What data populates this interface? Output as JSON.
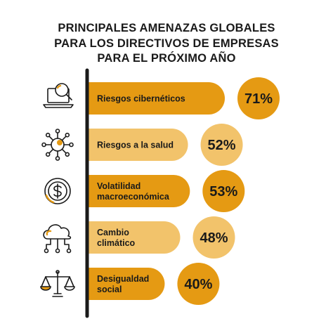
{
  "chart_data": {
    "type": "bar",
    "title_lines": [
      "PRINCIPALES AMENAZAS GLOBALES",
      "PARA LOS DIRECTIVOS DE EMPRESAS",
      "PARA EL PRÓXIMO AÑO"
    ],
    "categories": [
      [
        "Riesgos cibernéticos"
      ],
      [
        "Riesgos a la salud"
      ],
      [
        "Volatilidad",
        "macroeconómica"
      ],
      [
        "Cambio",
        "climático"
      ],
      [
        "Desigualdad",
        "social"
      ]
    ],
    "values": [
      71,
      52,
      53,
      48,
      40
    ],
    "value_labels": [
      "71%",
      "52%",
      "53%",
      "48%",
      "40%"
    ],
    "icons": [
      "laptop-search-icon",
      "virus-icon",
      "dollar-coin-icon",
      "cloud-network-icon",
      "balance-scale-icon"
    ],
    "bar_colors": [
      "#E59A13",
      "#F2C36B",
      "#E59A13",
      "#F2C36B",
      "#E59A13"
    ],
    "accent_color": "#E59A13",
    "axis_color": "#1a1a1a"
  }
}
